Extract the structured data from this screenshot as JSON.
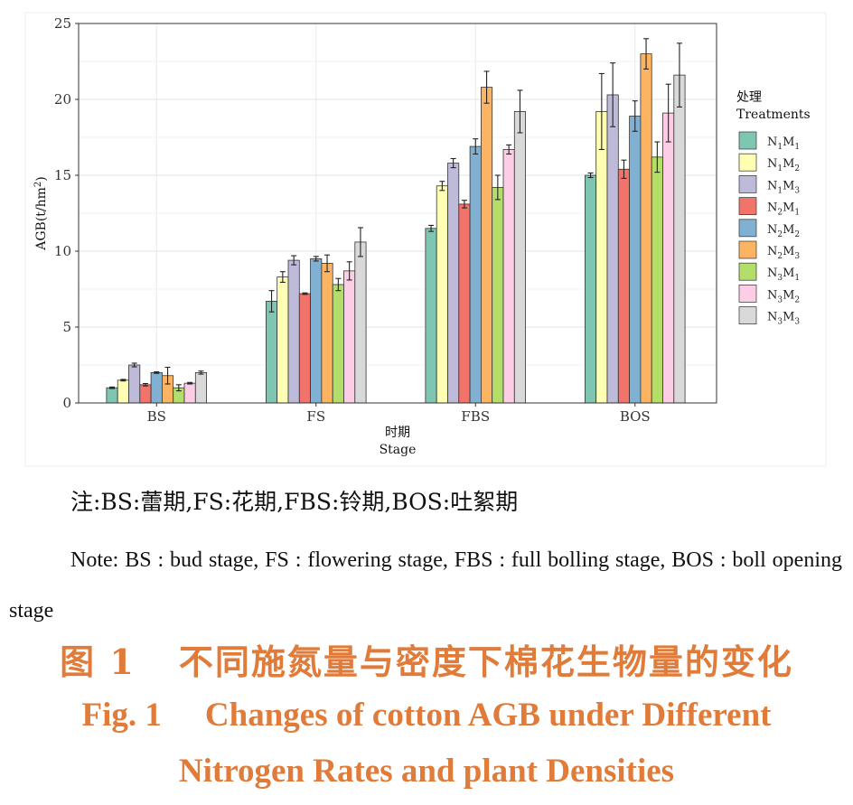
{
  "chart_data": {
    "type": "bar",
    "categories": [
      "BS",
      "FS",
      "FBS",
      "BOS"
    ],
    "ylabel_main": "AGB(t/hm",
    "ylabel_sup": "2",
    "ylabel_end": ")",
    "xlabel_zh": "时期",
    "xlabel_en": "Stage",
    "ylim": [
      0,
      25
    ],
    "yticks": [
      0,
      5,
      10,
      15,
      20,
      25
    ],
    "grid": true,
    "legend_position": "right",
    "legend_title_zh": "处理",
    "legend_title_en": "Treatments",
    "series": [
      {
        "name": "N1M1",
        "label_n": "N",
        "sub1": "1",
        "label_m": "M",
        "sub2": "1",
        "color": "#7FC6B2",
        "values": [
          1.0,
          6.7,
          11.5,
          15.0
        ],
        "errors": [
          0.05,
          0.7,
          0.2,
          0.15
        ]
      },
      {
        "name": "N1M2",
        "label_n": "N",
        "sub1": "1",
        "label_m": "M",
        "sub2": "2",
        "color": "#FFFFB3",
        "values": [
          1.5,
          8.3,
          14.3,
          19.2
        ],
        "errors": [
          0.05,
          0.35,
          0.3,
          2.5
        ]
      },
      {
        "name": "N1M3",
        "label_n": "N",
        "sub1": "1",
        "label_m": "M",
        "sub2": "3",
        "color": "#BEBADA",
        "values": [
          2.5,
          9.4,
          15.8,
          20.3
        ],
        "errors": [
          0.12,
          0.3,
          0.3,
          2.1
        ]
      },
      {
        "name": "N2M1",
        "label_n": "N",
        "sub1": "2",
        "label_m": "M",
        "sub2": "1",
        "color": "#F2736A",
        "values": [
          1.2,
          7.2,
          13.1,
          15.4
        ],
        "errors": [
          0.08,
          0.05,
          0.25,
          0.6
        ]
      },
      {
        "name": "N2M2",
        "label_n": "N",
        "sub1": "2",
        "label_m": "M",
        "sub2": "2",
        "color": "#80B1D3",
        "values": [
          2.0,
          9.5,
          16.9,
          18.9
        ],
        "errors": [
          0.05,
          0.15,
          0.5,
          1.0
        ]
      },
      {
        "name": "N2M3",
        "label_n": "N",
        "sub1": "2",
        "label_m": "M",
        "sub2": "3",
        "color": "#FDB462",
        "values": [
          1.8,
          9.2,
          20.8,
          23.0
        ],
        "errors": [
          0.55,
          0.55,
          1.05,
          1.0
        ]
      },
      {
        "name": "N3M1",
        "label_n": "N",
        "sub1": "3",
        "label_m": "M",
        "sub2": "1",
        "color": "#B3DE69",
        "values": [
          1.0,
          7.8,
          14.2,
          16.2
        ],
        "errors": [
          0.2,
          0.4,
          0.8,
          1.0
        ]
      },
      {
        "name": "N3M2",
        "label_n": "N",
        "sub1": "3",
        "label_m": "M",
        "sub2": "2",
        "color": "#FCCDE5",
        "values": [
          1.3,
          8.7,
          16.7,
          19.1
        ],
        "errors": [
          0.05,
          0.6,
          0.3,
          1.9
        ]
      },
      {
        "name": "N3M3",
        "label_n": "N",
        "sub1": "3",
        "label_m": "M",
        "sub2": "3",
        "color": "#D9D9D9",
        "values": [
          2.0,
          10.6,
          19.2,
          21.6
        ],
        "errors": [
          0.1,
          0.95,
          1.4,
          2.1
        ]
      }
    ]
  },
  "note_zh": "注:BS:蕾期,FS:花期,FBS:铃期,BOS:吐絮期",
  "note_en": "Note: BS : bud stage, FS : flowering stage, FBS : full bolling stage, BOS : boll opening stage",
  "caption": {
    "zh_num": "图 1",
    "zh_text": "不同施氮量与密度下棉花生物量的变化",
    "en_num": "Fig. 1",
    "en_line1": "Changes of cotton AGB under Different",
    "en_line2": "Nitrogen Rates and plant Densities"
  }
}
